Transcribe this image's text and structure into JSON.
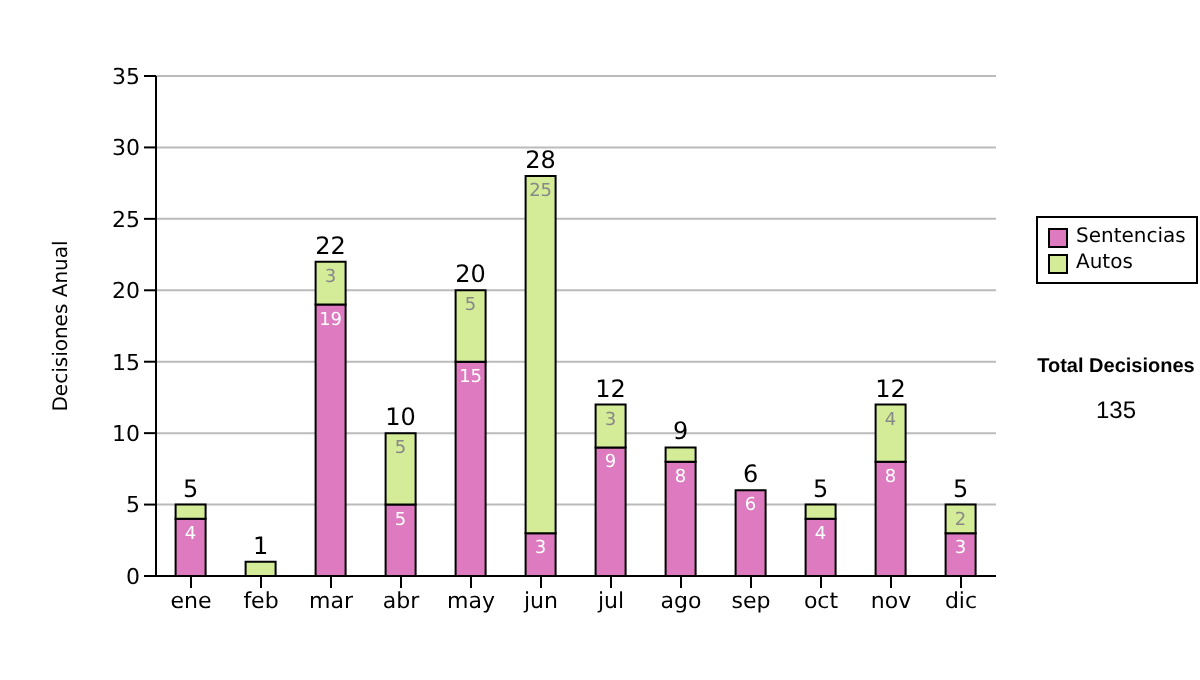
{
  "chart_data": {
    "type": "bar",
    "stacked": true,
    "ylabel": "Decisiones Anual",
    "categories": [
      "ene",
      "feb",
      "mar",
      "abr",
      "may",
      "jun",
      "jul",
      "ago",
      "sep",
      "oct",
      "nov",
      "dic"
    ],
    "series": [
      {
        "name": "Sentencias",
        "color": "#dd7ac0",
        "values": [
          4,
          0,
          19,
          5,
          15,
          3,
          9,
          8,
          6,
          4,
          8,
          3
        ],
        "value_labels": [
          "4",
          null,
          "19",
          "5",
          "15",
          "3",
          "9",
          "8",
          "6",
          "4",
          "8",
          "3"
        ]
      },
      {
        "name": "Autos",
        "color": "#d4ec98",
        "values": [
          1,
          1,
          3,
          5,
          5,
          25,
          3,
          1,
          0,
          1,
          4,
          2
        ],
        "value_labels": [
          null,
          null,
          "3",
          "5",
          "5",
          "25",
          "3",
          null,
          null,
          null,
          "4",
          "2"
        ]
      }
    ],
    "totals": [
      "5",
      "1",
      "22",
      "10",
      "20",
      "28",
      "12",
      "9",
      "6",
      "5",
      "12",
      "5"
    ],
    "ylim": [
      0,
      35
    ],
    "yticks": [
      0,
      5,
      10,
      15,
      20,
      25,
      30,
      35
    ],
    "grid": "y",
    "legend": "right",
    "annotations": [
      "Total Decisiones",
      "135"
    ]
  }
}
